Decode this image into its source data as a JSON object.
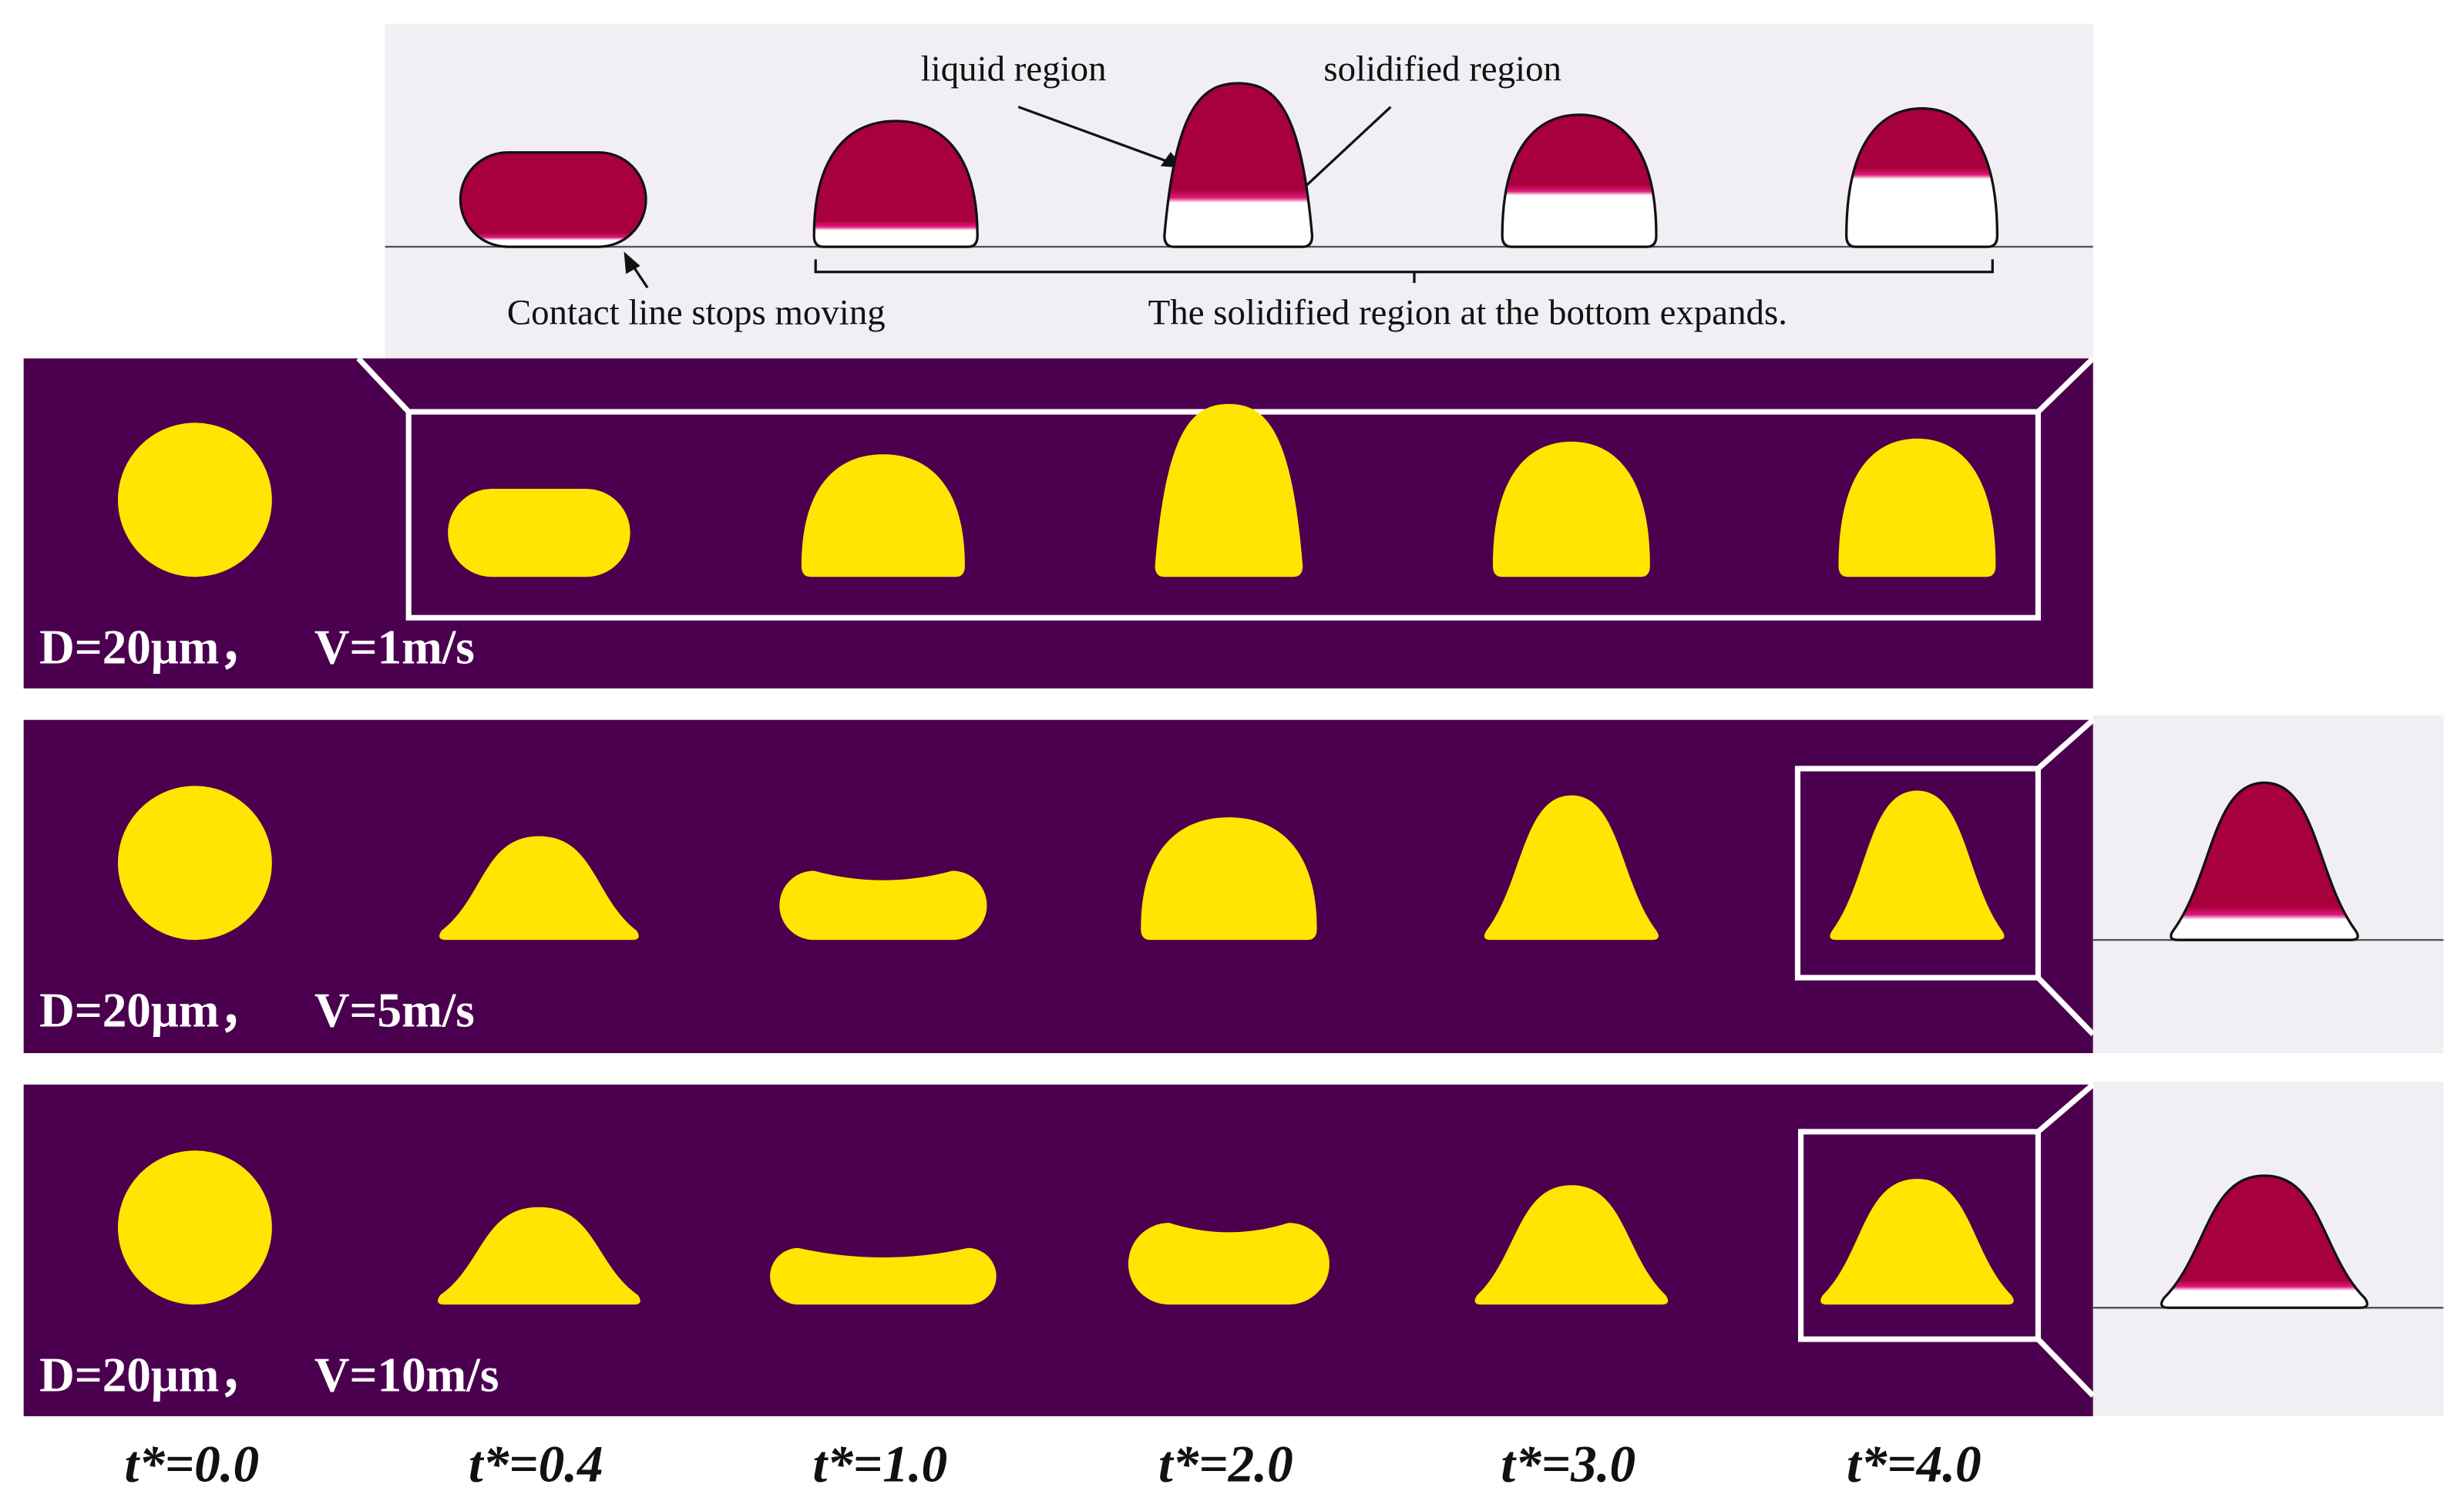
{
  "annotations": {
    "liquid": "liquid region",
    "solidified": "solidified region",
    "contact": "Contact line stops moving",
    "expands": "The solidified region at the bottom expands."
  },
  "rows": [
    {
      "diameter": "D=20μm，",
      "velocity": "V=1m/s"
    },
    {
      "diameter": "D=20μm，",
      "velocity": "V=5m/s"
    },
    {
      "diameter": "D=20μm，",
      "velocity": "V=10m/s"
    }
  ],
  "time_labels": [
    "t*=0.0",
    "t*=0.4",
    "t*=1.0",
    "t*=2.0",
    "t*=3.0",
    "t*=4.0"
  ]
}
